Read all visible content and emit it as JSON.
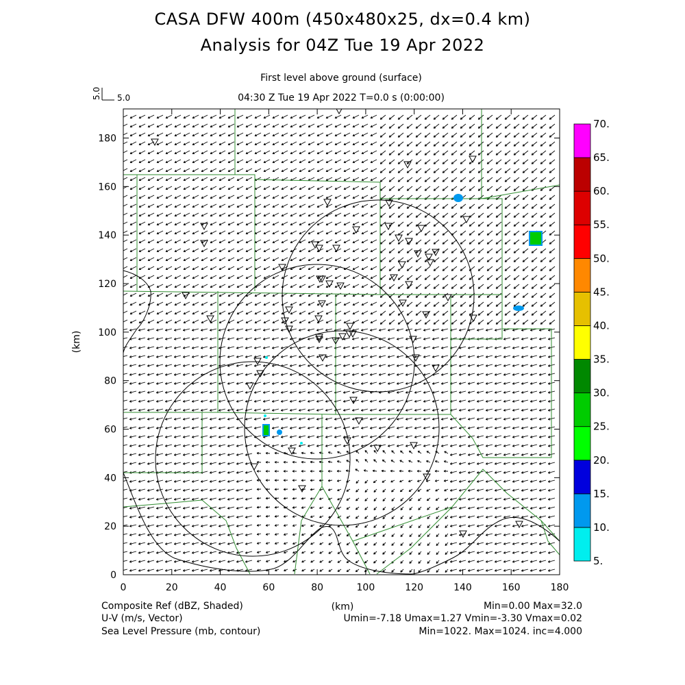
{
  "title_line1": "CASA DFW 400m (450x480x25, dx=0.4 km)",
  "title_line2": "Analysis for 04Z Tue 19 Apr 2022",
  "subtitle_level": "First level above ground (surface)",
  "subtitle_time": "04:30 Z Tue 19 Apr 2022    T=0.0 s (0:00:00)",
  "vector_reference": {
    "label_rotated": "5.0",
    "label": "5.0"
  },
  "axes": {
    "xlabel": "(km)",
    "ylabel": "(km)",
    "xlim": [
      0,
      180
    ],
    "ylim": [
      0,
      192
    ],
    "x_ticks": [
      "0",
      "20",
      "40",
      "60",
      "80",
      "100",
      "120",
      "140",
      "160",
      "180"
    ],
    "y_ticks": [
      "0",
      "20",
      "40",
      "60",
      "80",
      "100",
      "120",
      "140",
      "160",
      "180"
    ]
  },
  "colorbar": {
    "labels": [
      "5.",
      "10.",
      "15.",
      "20.",
      "25.",
      "30.",
      "35.",
      "40.",
      "45.",
      "50.",
      "55.",
      "60.",
      "65.",
      "70."
    ],
    "colors": [
      "#00eeee",
      "#0099ee",
      "#0000dd",
      "#00ff00",
      "#00cc00",
      "#008800",
      "#ffff00",
      "#e6c000",
      "#ff8800",
      "#ff0000",
      "#dd0000",
      "#bb0000",
      "#ff00ff"
    ]
  },
  "footer": {
    "left1": "Composite Ref (dBZ, Shaded)",
    "center1": "(km)",
    "right1": "Min=0.00 Max=32.0",
    "left2": "U-V (m/s, Vector)",
    "right2": "Umin=-7.18 Umax=1.27 Vmin=-3.30 Vmax=0.02",
    "left3": "Sea Level Pressure (mb, contour)",
    "right3": "Min=1022. Max=1024. inc=4.000"
  },
  "colors": {
    "county_lines": "#2e8b2e",
    "radar_rings": "#000000",
    "wind_vectors": "#000000",
    "pressure_contour": "#000000"
  }
}
